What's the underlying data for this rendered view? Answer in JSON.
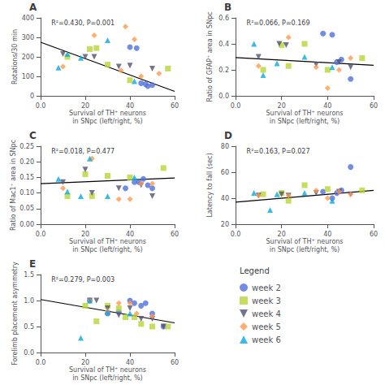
{
  "chart_data": [
    {
      "type": "scatter",
      "title": "A",
      "annotation": "R²=0.430, P=0.001",
      "xlabel": "Survival of TH⁺ neurons\nin SNpc (left/right, %)",
      "ylabel": "Rotations/30 min",
      "xlim": [
        0,
        60
      ],
      "ylim": [
        0,
        400
      ],
      "xticks": [
        {
          "value": 0,
          "label": "0.0"
        },
        20,
        40,
        60
      ],
      "yticks": [
        0,
        100,
        200,
        300,
        400
      ],
      "grid": false,
      "series": [
        {
          "name": "week 2",
          "marker": "circle",
          "x": [
            40,
            43,
            45,
            47,
            50,
            48
          ],
          "values": [
            250,
            245,
            65,
            60,
            55,
            50
          ]
        },
        {
          "name": "week 3",
          "marker": "square",
          "x": [
            12,
            22,
            25,
            30,
            40,
            57
          ],
          "values": [
            200,
            240,
            245,
            160,
            80,
            140
          ]
        },
        {
          "name": "week 4",
          "marker": "triangle_down",
          "x": [
            10,
            20,
            24,
            35,
            40,
            50
          ],
          "values": [
            215,
            200,
            200,
            150,
            155,
            140
          ]
        },
        {
          "name": "week 5",
          "marker": "diamond",
          "x": [
            10,
            24,
            36,
            38,
            42,
            45,
            53
          ],
          "values": [
            150,
            310,
            130,
            355,
            290,
            100,
            115
          ]
        },
        {
          "name": "week 6",
          "marker": "triangle_up",
          "x": [
            8,
            12,
            18,
            30,
            42
          ],
          "values": [
            145,
            215,
            195,
            285,
            75
          ]
        },
        {
          "type": "line",
          "line_style": "solid",
          "color": "black",
          "x": [
            0,
            60
          ],
          "values": [
            275,
            23
          ]
        }
      ]
    },
    {
      "type": "scatter",
      "title": "B",
      "annotation": "R²=0.066, P=0.169",
      "xlabel": "Survival of TH⁺ neurons\nin SNpc (left/right, %)",
      "ylabel": "Ratio of GFAP⁺ area in SNpc",
      "xlim": [
        0,
        60
      ],
      "ylim": [
        0,
        0.6
      ],
      "xticks": [
        {
          "value": 0,
          "label": "0.0"
        },
        20,
        40,
        60
      ],
      "yticks": [
        {
          "value": 0,
          "label": "0.0"
        },
        0.2,
        0.4,
        0.6
      ],
      "grid": false,
      "series": [
        {
          "name": "week 2",
          "marker": "circle",
          "x": [
            38,
            42,
            44,
            46,
            50
          ],
          "values": [
            0.48,
            0.47,
            0.26,
            0.28,
            0.13
          ]
        },
        {
          "name": "week 3",
          "marker": "square",
          "x": [
            12,
            20,
            23,
            30,
            40,
            55
          ],
          "values": [
            0.2,
            0.39,
            0.23,
            0.4,
            0.2,
            0.29
          ]
        },
        {
          "name": "week 4",
          "marker": "triangle_down",
          "x": [
            10,
            19,
            22,
            35,
            45,
            50
          ],
          "values": [
            0.3,
            0.4,
            0.39,
            0.24,
            0.26,
            0.22
          ]
        },
        {
          "name": "week 5",
          "marker": "diamond",
          "x": [
            10,
            23,
            35,
            40,
            45,
            50
          ],
          "values": [
            0.23,
            0.45,
            0.22,
            0.06,
            0.2,
            0.29
          ]
        },
        {
          "name": "week 6",
          "marker": "triangle_up",
          "x": [
            8,
            12,
            18,
            30,
            42
          ],
          "values": [
            0.4,
            0.16,
            0.25,
            0.3,
            0.22
          ]
        },
        {
          "type": "line",
          "line_style": "solid",
          "color": "black",
          "x": [
            0,
            60
          ],
          "values": [
            0.295,
            0.235
          ]
        }
      ]
    },
    {
      "type": "scatter",
      "title": "C",
      "annotation": "R²=0.018, P=0.477",
      "xlabel": "Survival of TH⁺ neurons\nin SNpc (left/right, %)",
      "ylabel": "Ratio of Mac1⁺ area in SNpc",
      "xlim": [
        0,
        60
      ],
      "ylim": [
        0,
        0.25
      ],
      "xticks": [
        {
          "value": 0,
          "label": "0.0"
        },
        20,
        40,
        60
      ],
      "yticks": [
        {
          "value": 0,
          "label": "0.00"
        },
        0.05,
        {
          "value": 0.1,
          "label": "0.10"
        },
        0.15,
        {
          "value": 0.2,
          "label": "0.20"
        },
        0.25
      ],
      "grid": false,
      "series": [
        {
          "name": "week 2",
          "marker": "circle",
          "x": [
            38,
            42,
            44,
            46,
            50,
            48
          ],
          "values": [
            0.115,
            0.135,
            0.135,
            0.145,
            0.115,
            0.125
          ]
        },
        {
          "name": "week 3",
          "marker": "square",
          "x": [
            12,
            20,
            23,
            30,
            40,
            55
          ],
          "values": [
            0.09,
            0.16,
            0.09,
            0.155,
            0.15,
            0.18
          ]
        },
        {
          "name": "week 4",
          "marker": "triangle_down",
          "x": [
            10,
            20,
            23,
            35,
            45,
            50
          ],
          "values": [
            0.135,
            0.175,
            0.1,
            0.115,
            0.125,
            0.09
          ]
        },
        {
          "name": "week 5",
          "marker": "diamond",
          "x": [
            10,
            23,
            35,
            40,
            45,
            50
          ],
          "values": [
            0.115,
            0.21,
            0.08,
            0.08,
            0.13,
            0.13
          ]
        },
        {
          "name": "week 6",
          "marker": "triangle_up",
          "x": [
            8,
            12,
            18,
            22,
            30,
            42
          ],
          "values": [
            0.145,
            0.105,
            0.09,
            0.21,
            0.09,
            0.15
          ]
        },
        {
          "type": "line",
          "line_style": "solid",
          "color": "black",
          "x": [
            0,
            60
          ],
          "values": [
            0.13,
            0.148
          ]
        }
      ]
    },
    {
      "type": "scatter",
      "title": "D",
      "annotation": "R²=0.163, P=0.027",
      "xlabel": "Survival of TH⁺ neurons\nin SNpc (left/right, %)",
      "ylabel": "Latency to fall (sec)",
      "xlim": [
        0,
        60
      ],
      "ylim": [
        20,
        80
      ],
      "xticks": [
        {
          "value": 0,
          "label": "0.0"
        },
        20,
        40,
        60
      ],
      "yticks": [
        20,
        40,
        60,
        80
      ],
      "grid": false,
      "series": [
        {
          "name": "week 2",
          "marker": "circle",
          "x": [
            38,
            42,
            44,
            46,
            50
          ],
          "values": [
            45,
            40,
            44,
            46,
            64
          ]
        },
        {
          "name": "week 3",
          "marker": "square",
          "x": [
            12,
            20,
            23,
            30,
            40,
            55
          ],
          "values": [
            43,
            44,
            38,
            50,
            47,
            46
          ]
        },
        {
          "name": "week 4",
          "marker": "triangle_down",
          "x": [
            10,
            20,
            23,
            35,
            45,
            50
          ],
          "values": [
            42,
            43,
            42,
            44,
            45,
            43
          ]
        },
        {
          "name": "week 5",
          "marker": "diamond",
          "x": [
            10,
            23,
            35,
            40,
            45,
            50
          ],
          "values": [
            42,
            42,
            46,
            40,
            45,
            43
          ]
        },
        {
          "name": "week 6",
          "marker": "triangle_up",
          "x": [
            8,
            15,
            18,
            30,
            42
          ],
          "values": [
            44,
            31,
            43,
            44,
            38
          ]
        },
        {
          "type": "line",
          "line_style": "solid",
          "color": "black",
          "x": [
            0,
            60
          ],
          "values": [
            37,
            46
          ]
        }
      ]
    },
    {
      "type": "scatter",
      "title": "E",
      "annotation": "R²=0.279, P=0.003",
      "xlabel": "Survival of TH⁺ neurons\nin SNpc (left/right, %)",
      "ylabel": "Forelimb placement asymmetry",
      "xlim": [
        0,
        60
      ],
      "ylim": [
        0,
        1.5
      ],
      "xticks": [
        {
          "value": 0,
          "label": "0.0"
        },
        20,
        40,
        60
      ],
      "yticks": [
        {
          "value": 0,
          "label": "0.0"
        },
        0.5,
        {
          "value": 1,
          "label": "1.0"
        },
        1.5
      ],
      "grid": false,
      "legend": "lower right",
      "legend_title": "Legend",
      "series": [
        {
          "name": "week 2",
          "marker": "circle",
          "x": [
            22,
            30,
            35,
            40,
            42,
            45,
            47,
            50,
            55
          ],
          "values": [
            1.0,
            0.75,
            0.78,
            1.0,
            0.95,
            0.9,
            0.95,
            0.75,
            0.5
          ]
        },
        {
          "name": "week 3",
          "marker": "square",
          "x": [
            20,
            25,
            30,
            35,
            38,
            42,
            45,
            50,
            57
          ],
          "values": [
            0.9,
            0.6,
            0.9,
            0.85,
            0.68,
            0.68,
            0.55,
            0.5,
            0.5
          ]
        },
        {
          "name": "week 4",
          "marker": "triangle_down",
          "x": [
            22,
            25,
            30,
            35,
            40,
            45,
            50,
            55
          ],
          "values": [
            1.0,
            1.0,
            0.85,
            0.72,
            0.85,
            0.65,
            0.65,
            0.5
          ]
        },
        {
          "name": "week 5",
          "marker": "diamond",
          "x": [
            22,
            30,
            35,
            40,
            43,
            50
          ],
          "values": [
            1.0,
            0.8,
            0.95,
            0.95,
            0.75,
            0.7
          ]
        },
        {
          "name": "week 6",
          "marker": "triangle_up",
          "x": [
            18,
            22,
            30,
            40
          ],
          "values": [
            0.28,
            1.0,
            0.78,
            0.75
          ]
        },
        {
          "type": "line",
          "line_style": "solid",
          "color": "black",
          "x": [
            0,
            60
          ],
          "values": [
            1.02,
            0.57
          ]
        }
      ]
    }
  ]
}
